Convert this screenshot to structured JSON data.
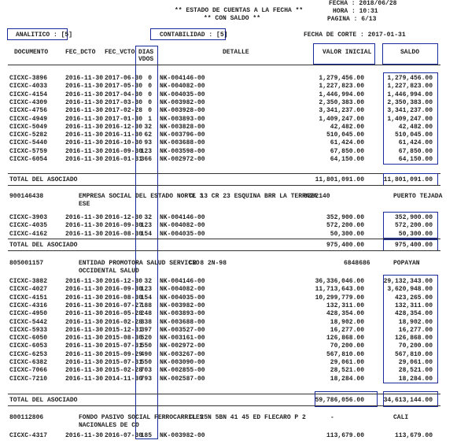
{
  "header": {
    "fecha": "FECHA : 2018/06/28",
    "hora": "HORA : 10:31",
    "pagina": "PAGINA : 6/13",
    "title": "** ESTADO DE CUENTAS A LA FECHA **",
    "subtitle": "** CON SALDO **",
    "analitico": "ANALITICO : [5]",
    "contabilidad": "CONTABILIDAD : [5]",
    "fecha_corte": "FECHA DE CORTE : 2017-01-31"
  },
  "columns": {
    "documento": "DOCUMENTO",
    "fec_dcto": "FEC_DCTO",
    "fec_vcto": "FEC_VCTO",
    "dias": "DIAS",
    "vdos": "VDOS",
    "detalle": "DETALLE",
    "valor_inicial": "VALOR INICIAL",
    "saldo": "SALDO"
  },
  "groups": [
    {
      "rows": [
        [
          "CICXC-3896",
          "2016-11-30",
          "2017-06-30",
          "0",
          "NK-004146-00",
          "1,279,456.00",
          "1,279,456.00"
        ],
        [
          "CICXC-4033",
          "2016-11-30",
          "2017-05-30",
          "0",
          "NK-004082-00",
          "1,227,823.00",
          "1,227,823.00"
        ],
        [
          "CICXC-4154",
          "2016-11-30",
          "2017-04-30",
          "0",
          "NK-004035-00",
          "1,446,994.00",
          "1,446,994.00"
        ],
        [
          "CICXC-4309",
          "2016-11-30",
          "2017-03-30",
          "0",
          "NK-003982-00",
          "2,350,383.00",
          "2,350,383.00"
        ],
        [
          "CICXC-4756",
          "2016-11-30",
          "2017-02-28",
          "0",
          "NK-003928-00",
          "3,341,237.00",
          "3,341,237.00"
        ],
        [
          "CICXC-4949",
          "2016-11-30",
          "2017-01-30",
          "1",
          "NK-003893-00",
          "1,409,247.00",
          "1,409,247.00"
        ],
        [
          "CICXC-5049",
          "2016-11-30",
          "2016-12-30",
          "32",
          "NK-003828-00",
          "42,482.00",
          "42,482.00"
        ],
        [
          "CICXC-5282",
          "2016-11-30",
          "2016-11-30",
          "62",
          "NK-003796-00",
          "510,045.00",
          "510,045.00"
        ],
        [
          "CICXC-5440",
          "2016-11-30",
          "2016-10-30",
          "93",
          "NK-003688-00",
          "61,424.00",
          "61,424.00"
        ],
        [
          "CICXC-5759",
          "2016-11-30",
          "2016-09-30",
          "123",
          "NK-003598-00",
          "67,850.00",
          "67,850.00"
        ],
        [
          "CICXC-6054",
          "2016-11-30",
          "2016-01-31",
          "366",
          "NK-002972-00",
          "64,150.00",
          "64,150.00"
        ]
      ],
      "total_label": "TOTAL DEL ASOCIADO",
      "total_inicial": "11,801,091.00",
      "total_saldo": "11,801,091.00"
    },
    {
      "id": "900146438",
      "name": "EMPRESA SOCIAL DEL ESTADO NORTE 3",
      "name2": "ESE",
      "address": "CL 13 CR 23 ESQUINA BRR LA TERRAZA",
      "phone": "8282140",
      "city": "PUERTO TEJADA",
      "rows": [
        [
          "CICXC-3903",
          "2016-11-30",
          "2016-12-30",
          "32",
          "NK-004146-00",
          "352,900.00",
          "352,900.00"
        ],
        [
          "CICXC-4035",
          "2016-11-30",
          "2016-09-30",
          "123",
          "NK-004082-00",
          "572,200.00",
          "572,200.00"
        ],
        [
          "CICXC-4162",
          "2016-11-30",
          "2016-08-30",
          "154",
          "NK-004035-00",
          "50,300.00",
          "50,300.00"
        ]
      ],
      "total_label": "TOTAL DEL ASOCIADO",
      "total_inicial": "975,400.00",
      "total_saldo": "975,400.00"
    },
    {
      "id": "805001157",
      "name": "ENTIDAD PROMOTORA SALUD SERVICIO",
      "name2": "OCCIDENTAL SALUD",
      "address": "CR 8 2N-98",
      "phone": "6848686",
      "city": "POPAYAN",
      "rows": [
        [
          "CICXC-3882",
          "2016-11-30",
          "2016-12-30",
          "32",
          "NK-004146-00",
          "36,336,046.00",
          "29,132,343.00"
        ],
        [
          "CICXC-4027",
          "2016-11-30",
          "2016-09-30",
          "123",
          "NK-004082-00",
          "11,713,643.00",
          "3,620,948.00"
        ],
        [
          "CICXC-4151",
          "2016-11-30",
          "2016-08-30",
          "154",
          "NK-004035-00",
          "10,299,779.00",
          "423,265.00"
        ],
        [
          "CICXC-4316",
          "2016-11-30",
          "2016-07-27",
          "188",
          "NK-003982-00",
          "132,311.00",
          "132,311.00"
        ],
        [
          "CICXC-4950",
          "2016-11-30",
          "2016-05-28",
          "248",
          "NK-003893-00",
          "428,354.00",
          "428,354.00"
        ],
        [
          "CICXC-5442",
          "2016-11-30",
          "2016-02-28",
          "338",
          "NK-003688-00",
          "18,902.00",
          "18,902.00"
        ],
        [
          "CICXC-5933",
          "2016-11-30",
          "2015-12-31",
          "397",
          "NK-003527-00",
          "16,277.00",
          "16,277.00"
        ],
        [
          "CICXC-6050",
          "2016-11-30",
          "2015-08-30",
          "520",
          "NK-003161-00",
          "126,868.00",
          "126,868.00"
        ],
        [
          "CICXC-6053",
          "2016-11-30",
          "2015-07-31",
          "550",
          "NK-002972-00",
          "70,200.00",
          "70,200.00"
        ],
        [
          "CICXC-6253",
          "2016-11-30",
          "2015-09-29",
          "490",
          "NK-003267-00",
          "567,810.00",
          "567,810.00"
        ],
        [
          "CICXC-6382",
          "2016-11-30",
          "2015-07-31",
          "550",
          "NK-003090-00",
          "29,061.00",
          "29,061.00"
        ],
        [
          "CICXC-7066",
          "2016-11-30",
          "2015-02-28",
          "703",
          "NK-002855-00",
          "28,521.00",
          "28,521.00"
        ],
        [
          "CICXC-7210",
          "2016-11-30",
          "2014-11-30",
          "793",
          "NK-002587-00",
          "18,284.00",
          "18,284.00"
        ]
      ],
      "total_label": "TOTAL DEL ASOCIADO",
      "total_inicial": "59,786,056.00",
      "total_saldo": "34,613,144.00"
    },
    {
      "id": "800112806",
      "name": "FONDO PASIVO SOCIAL FERROCARRILES",
      "name2": "NACIONALES DE CO",
      "address": "CL 25N 5BN 41 45 ED FLECARO P 2",
      "phone": "-",
      "city": "CALI",
      "rows": [
        [
          "CICXC-4317",
          "2016-11-30",
          "2016-07-30",
          "185",
          "NK-003982-00",
          "113,679.00",
          "113,679.00"
        ]
      ]
    }
  ]
}
